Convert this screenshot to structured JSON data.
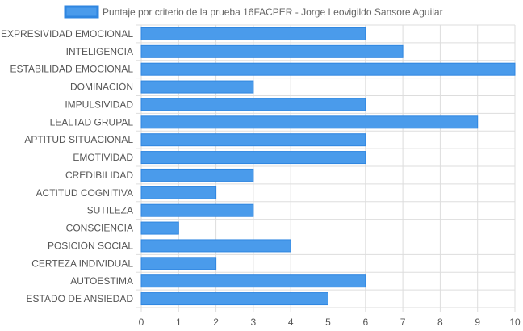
{
  "chart_data": {
    "type": "bar",
    "orientation": "horizontal",
    "title": "",
    "xlabel": "",
    "ylabel": "",
    "xlim": [
      0,
      10
    ],
    "x_ticks": [
      "0",
      "1",
      "2",
      "3",
      "4",
      "5",
      "6",
      "7",
      "8",
      "9",
      "10"
    ],
    "grid": true,
    "legend_position": "top",
    "categories": [
      "EXPRESIVIDAD EMOCIONAL",
      "INTELIGENCIA",
      "ESTABILIDAD EMOCIONAL",
      "DOMINACIÓN",
      "IMPULSIVIDAD",
      "LEALTAD GRUPAL",
      "APTITUD SITUACIONAL",
      "EMOTIVIDAD",
      "CREDIBILIDAD",
      "ACTITUD COGNITIVA",
      "SUTILEZA",
      "CONSCIENCIA",
      "POSICIÓN SOCIAL",
      "CERTEZA INDIVIDUAL",
      "AUTOESTIMA",
      "ESTADO DE ANSIEDAD"
    ],
    "series": [
      {
        "name": "Puntaje por criterio de la prueba 16FACPER - Jorge Leovigildo Sansore Aguilar",
        "color": "#4a9beb",
        "border_color": "#2f86e0",
        "values": [
          6,
          7,
          10,
          3,
          6,
          9,
          6,
          6,
          3,
          2,
          3,
          1,
          4,
          2,
          6,
          5
        ]
      }
    ]
  }
}
